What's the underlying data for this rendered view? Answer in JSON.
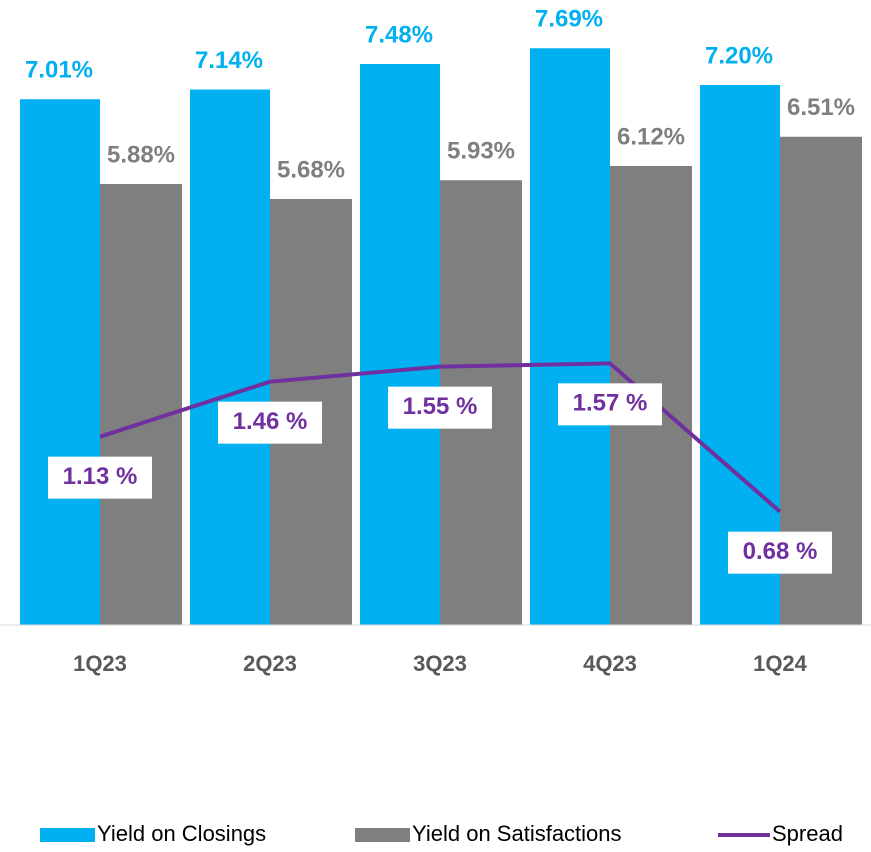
{
  "chart_data": {
    "type": "bar",
    "categories": [
      "1Q23",
      "2Q23",
      "3Q23",
      "4Q23",
      "1Q24"
    ],
    "series": [
      {
        "name": "Yield on Closings",
        "type": "bar",
        "color": "#00b0f0",
        "values": [
          7.01,
          7.14,
          7.48,
          7.69,
          7.2
        ],
        "value_labels": [
          "7.01%",
          "7.14%",
          "7.48%",
          "7.69%",
          "7.20%"
        ]
      },
      {
        "name": "Yield on Satisfactions",
        "type": "bar",
        "color": "#7f7f7f",
        "values": [
          5.88,
          5.68,
          5.93,
          6.12,
          6.51
        ],
        "value_labels": [
          "5.88%",
          "5.68%",
          "5.93%",
          "6.12%",
          "6.51%"
        ]
      },
      {
        "name": "Spread",
        "type": "line",
        "axis": "y2",
        "color": "#7030a0",
        "values": [
          1.13,
          1.46,
          1.55,
          1.57,
          0.68
        ],
        "value_labels": [
          "1.13 %",
          "1.46 %",
          "1.55 %",
          "1.57 %",
          "0.68 %"
        ]
      }
    ],
    "ylim": [
      0,
      8
    ],
    "y2lim": [
      0,
      3.6
    ],
    "legend": "bottom"
  }
}
